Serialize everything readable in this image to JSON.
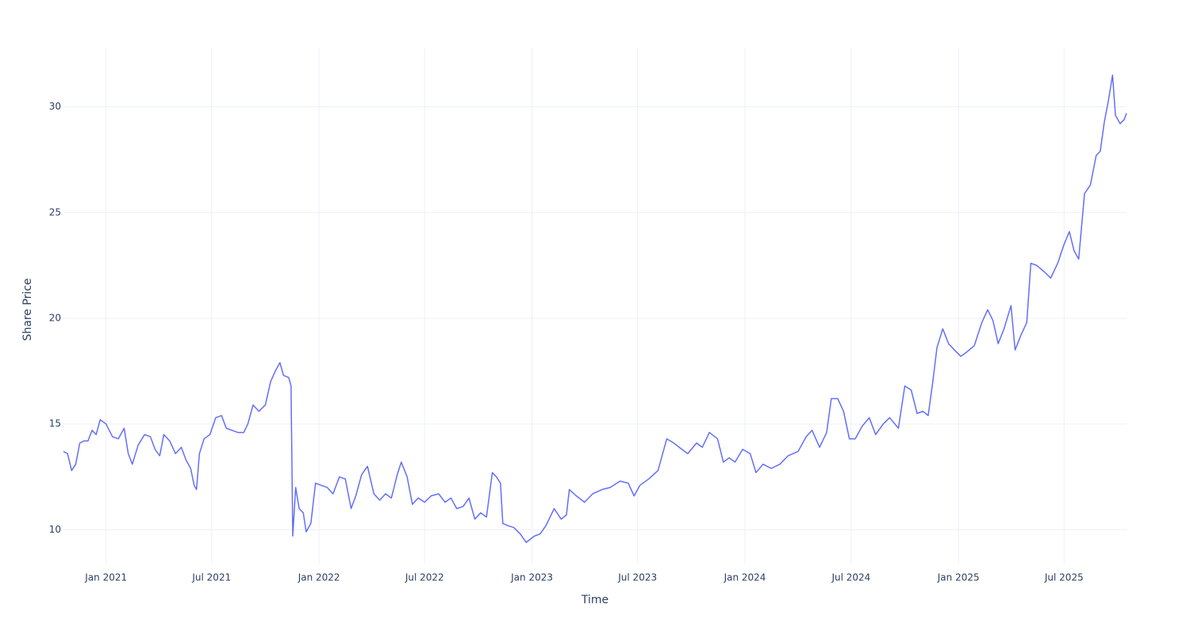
{
  "chart_data": {
    "type": "line",
    "x_label": "Time",
    "y_label": "Share Price",
    "color": "#636efa",
    "grid": true,
    "xlim": [
      "2020-10-20",
      "2025-10-16"
    ],
    "ylim": [
      8.4,
      32.8
    ],
    "yticks": [
      10,
      15,
      20,
      25,
      30
    ],
    "xticks": [
      {
        "value": "2021-01-01",
        "label": "Jan 2021"
      },
      {
        "value": "2021-07-01",
        "label": "Jul 2021"
      },
      {
        "value": "2022-01-01",
        "label": "Jan 2022"
      },
      {
        "value": "2022-07-01",
        "label": "Jul 2022"
      },
      {
        "value": "2023-01-01",
        "label": "Jan 2023"
      },
      {
        "value": "2023-07-01",
        "label": "Jul 2023"
      },
      {
        "value": "2024-01-01",
        "label": "Jan 2024"
      },
      {
        "value": "2024-07-01",
        "label": "Jul 2024"
      },
      {
        "value": "2025-01-01",
        "label": "Jan 2025"
      },
      {
        "value": "2025-07-01",
        "label": "Jul 2025"
      }
    ],
    "x": [
      "2020-10-20",
      "2020-10-27",
      "2020-11-03",
      "2020-11-10",
      "2020-11-17",
      "2020-11-24",
      "2020-12-01",
      "2020-12-08",
      "2020-12-15",
      "2020-12-22",
      "2021-01-01",
      "2021-01-12",
      "2021-01-22",
      "2021-02-01",
      "2021-02-08",
      "2021-02-15",
      "2021-02-25",
      "2021-03-08",
      "2021-03-18",
      "2021-03-26",
      "2021-04-03",
      "2021-04-10",
      "2021-04-20",
      "2021-04-30",
      "2021-05-10",
      "2021-05-18",
      "2021-05-26",
      "2021-06-01",
      "2021-06-05",
      "2021-06-10",
      "2021-06-18",
      "2021-06-28",
      "2021-07-08",
      "2021-07-18",
      "2021-07-26",
      "2021-08-05",
      "2021-08-15",
      "2021-08-25",
      "2021-09-01",
      "2021-09-10",
      "2021-09-20",
      "2021-10-01",
      "2021-10-10",
      "2021-10-18",
      "2021-10-26",
      "2021-11-01",
      "2021-11-10",
      "2021-11-14",
      "2021-11-17",
      "2021-11-22",
      "2021-11-28",
      "2021-12-05",
      "2021-12-10",
      "2021-12-18",
      "2021-12-26",
      "2022-01-05",
      "2022-01-15",
      "2022-01-25",
      "2022-02-05",
      "2022-02-15",
      "2022-02-25",
      "2022-03-05",
      "2022-03-15",
      "2022-03-25",
      "2022-04-05",
      "2022-04-15",
      "2022-04-25",
      "2022-05-05",
      "2022-05-15",
      "2022-05-22",
      "2022-06-01",
      "2022-06-10",
      "2022-06-20",
      "2022-07-01",
      "2022-07-12",
      "2022-07-25",
      "2022-08-05",
      "2022-08-15",
      "2022-08-25",
      "2022-09-05",
      "2022-09-15",
      "2022-09-25",
      "2022-10-05",
      "2022-10-15",
      "2022-10-25",
      "2022-11-01",
      "2022-11-08",
      "2022-11-12",
      "2022-11-20",
      "2022-12-01",
      "2022-12-12",
      "2022-12-22",
      "2023-01-05",
      "2023-01-15",
      "2023-01-25",
      "2023-02-08",
      "2023-02-20",
      "2023-03-01",
      "2023-03-06",
      "2023-03-18",
      "2023-04-01",
      "2023-04-15",
      "2023-05-01",
      "2023-05-15",
      "2023-06-01",
      "2023-06-15",
      "2023-06-25",
      "2023-07-05",
      "2023-07-20",
      "2023-08-05",
      "2023-08-20",
      "2023-09-01",
      "2023-09-15",
      "2023-09-25",
      "2023-10-10",
      "2023-10-20",
      "2023-11-01",
      "2023-11-15",
      "2023-11-25",
      "2023-12-05",
      "2023-12-15",
      "2023-12-28",
      "2024-01-10",
      "2024-01-20",
      "2024-02-01",
      "2024-02-15",
      "2024-03-01",
      "2024-03-15",
      "2024-04-01",
      "2024-04-15",
      "2024-04-25",
      "2024-05-08",
      "2024-05-20",
      "2024-05-28",
      "2024-06-08",
      "2024-06-18",
      "2024-06-28",
      "2024-07-08",
      "2024-07-20",
      "2024-08-01",
      "2024-08-12",
      "2024-08-25",
      "2024-09-05",
      "2024-09-20",
      "2024-10-01",
      "2024-10-12",
      "2024-10-22",
      "2024-11-01",
      "2024-11-10",
      "2024-11-18",
      "2024-11-25",
      "2024-12-05",
      "2024-12-15",
      "2024-12-25",
      "2025-01-05",
      "2025-01-15",
      "2025-01-28",
      "2025-02-10",
      "2025-02-20",
      "2025-03-01",
      "2025-03-10",
      "2025-03-20",
      "2025-04-01",
      "2025-04-08",
      "2025-04-18",
      "2025-04-28",
      "2025-05-05",
      "2025-05-15",
      "2025-05-28",
      "2025-06-08",
      "2025-06-20",
      "2025-07-01",
      "2025-07-10",
      "2025-07-18",
      "2025-07-26",
      "2025-08-05",
      "2025-08-15",
      "2025-08-25",
      "2025-09-01",
      "2025-09-08",
      "2025-09-15",
      "2025-09-22",
      "2025-09-27",
      "2025-10-05",
      "2025-10-12",
      "2025-10-16"
    ],
    "values": [
      13.7,
      13.6,
      12.8,
      13.1,
      14.1,
      14.2,
      14.2,
      14.7,
      14.5,
      15.2,
      15.0,
      14.4,
      14.3,
      14.8,
      13.6,
      13.1,
      14.0,
      14.5,
      14.4,
      13.8,
      13.5,
      14.5,
      14.2,
      13.6,
      13.9,
      13.3,
      12.9,
      12.1,
      11.9,
      13.6,
      14.3,
      14.5,
      15.3,
      15.4,
      14.8,
      14.7,
      14.6,
      14.6,
      15.0,
      15.9,
      15.6,
      15.9,
      17.0,
      17.5,
      17.9,
      17.3,
      17.2,
      16.8,
      9.7,
      12.0,
      11.0,
      10.8,
      9.9,
      10.3,
      12.2,
      12.1,
      12.0,
      11.7,
      12.5,
      12.4,
      11.0,
      11.6,
      12.6,
      13.0,
      11.7,
      11.4,
      11.7,
      11.5,
      12.6,
      13.2,
      12.5,
      11.2,
      11.5,
      11.3,
      11.6,
      11.7,
      11.3,
      11.5,
      11.0,
      11.1,
      11.5,
      10.5,
      10.8,
      10.6,
      12.7,
      12.5,
      12.2,
      10.3,
      10.2,
      10.1,
      9.8,
      9.4,
      9.7,
      9.8,
      10.2,
      11.0,
      10.5,
      10.7,
      11.9,
      11.6,
      11.3,
      11.7,
      11.9,
      12.0,
      12.3,
      12.2,
      11.6,
      12.1,
      12.4,
      12.8,
      14.3,
      14.1,
      13.8,
      13.6,
      14.1,
      13.9,
      14.6,
      14.3,
      13.2,
      13.4,
      13.2,
      13.8,
      13.6,
      12.7,
      13.1,
      12.9,
      13.1,
      13.5,
      13.7,
      14.4,
      14.7,
      13.9,
      14.6,
      16.2,
      16.2,
      15.6,
      14.3,
      14.3,
      14.9,
      15.3,
      14.5,
      15.0,
      15.3,
      14.8,
      16.8,
      16.6,
      15.5,
      15.6,
      15.4,
      17.0,
      18.6,
      19.5,
      18.8,
      18.5,
      18.2,
      18.4,
      18.7,
      19.8,
      20.4,
      19.9,
      18.8,
      19.5,
      20.6,
      18.5,
      19.2,
      19.8,
      22.6,
      22.5,
      22.2,
      21.9,
      22.6,
      23.5,
      24.1,
      23.2,
      22.8,
      25.9,
      26.3,
      27.7,
      27.9,
      29.3,
      30.3,
      31.5,
      29.6,
      29.2,
      29.4,
      29.7
    ]
  }
}
